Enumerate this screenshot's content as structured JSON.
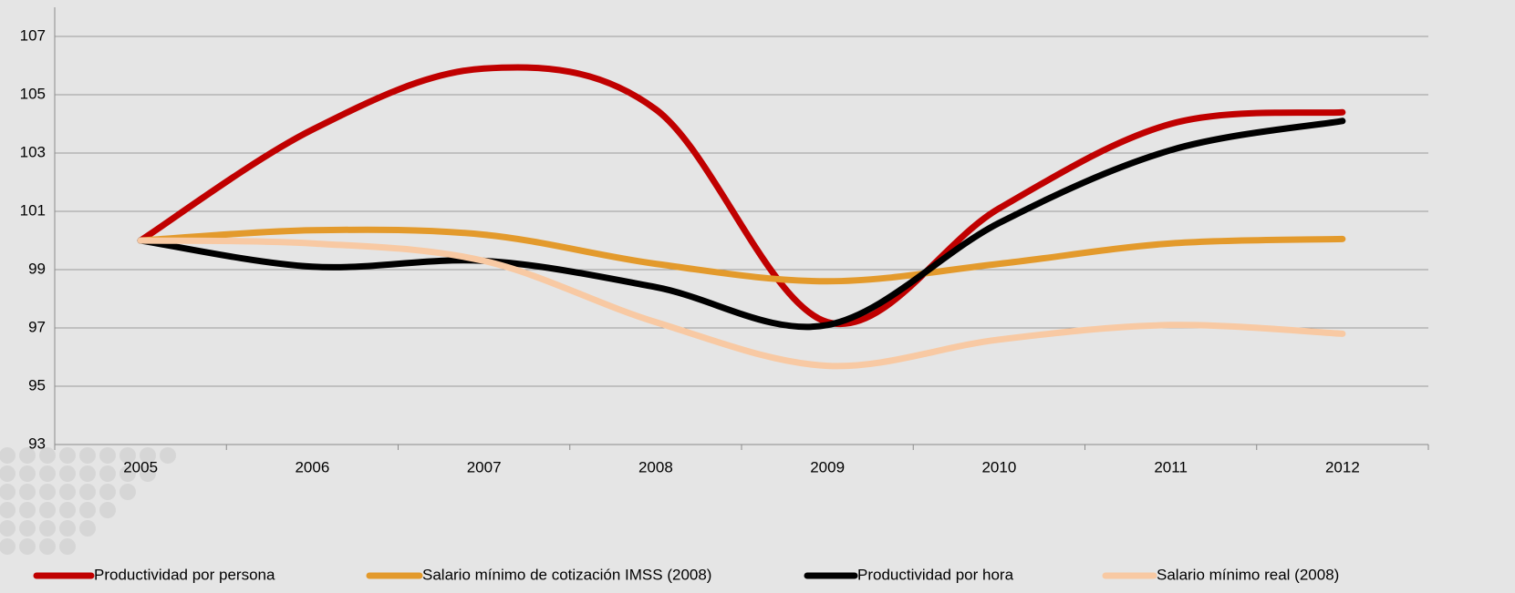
{
  "chart_data": {
    "type": "line",
    "categories": [
      "2005",
      "2006",
      "2007",
      "2008",
      "2009",
      "2010",
      "2011",
      "2012"
    ],
    "series": [
      {
        "name": "Productividad por persona",
        "color": "#c00000",
        "values": [
          100,
          103.8,
          105.9,
          104.5,
          97.2,
          101.1,
          104.0,
          104.4
        ]
      },
      {
        "name": "Salario mínimo de cotización IMSS (2008)",
        "color": "#e39a2c",
        "values": [
          100,
          100.35,
          100.2,
          99.2,
          98.6,
          99.2,
          99.9,
          100.05
        ]
      },
      {
        "name": "Productividad por hora",
        "color": "#000000",
        "values": [
          100,
          99.1,
          99.3,
          98.4,
          97.1,
          100.6,
          103.1,
          104.1
        ]
      },
      {
        "name": "Salario mínimo real (2008)",
        "color": "#f8c9a3",
        "values": [
          100,
          99.9,
          99.3,
          97.2,
          95.7,
          96.6,
          97.1,
          96.8
        ]
      }
    ],
    "ylim": [
      93,
      108
    ],
    "yticks": [
      93,
      95,
      97,
      99,
      101,
      103,
      105,
      107
    ],
    "grid": true,
    "smooth": true,
    "legend": "bottom"
  }
}
